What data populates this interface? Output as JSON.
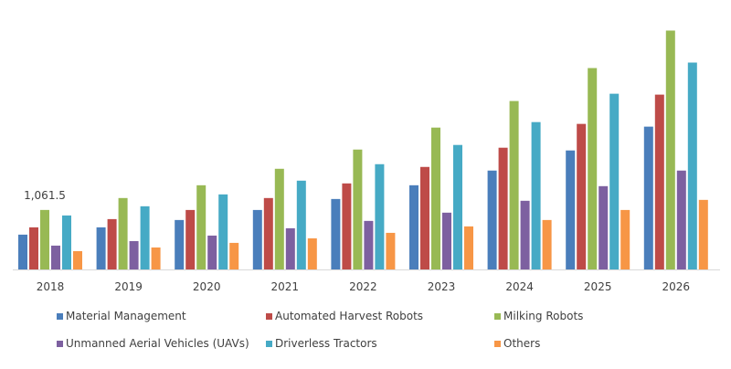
{
  "chart_data": {
    "type": "bar",
    "title": "",
    "xlabel": "",
    "ylabel": "",
    "ylim": [
      0,
      4400
    ],
    "grid": false,
    "legend_placement": "bottom",
    "categories": [
      "2018",
      "2019",
      "2020",
      "2021",
      "2022",
      "2023",
      "2024",
      "2025",
      "2026"
    ],
    "series": [
      {
        "name": "Material Management",
        "color": "#4a7ebb",
        "values": [
          621,
          751,
          882,
          1061,
          1257,
          1502,
          1764,
          2123,
          2548
        ]
      },
      {
        "name": "Automated Harvest Robots",
        "color": "#be4b48",
        "values": [
          751,
          898,
          1061,
          1274,
          1535,
          1829,
          2172,
          2597,
          3119
        ]
      },
      {
        "name": "Milking Robots",
        "color": "#98b954",
        "values": [
          1061.5,
          1274,
          1502,
          1796,
          2139,
          2531,
          3005,
          3593,
          4262
        ]
      },
      {
        "name": "Unmanned Aerial Vehicles (UAVs)",
        "color": "#7d60a0",
        "values": [
          425,
          506,
          604,
          735,
          866,
          1013,
          1225,
          1486,
          1764
        ]
      },
      {
        "name": "Driverless Tractors",
        "color": "#46aac5",
        "values": [
          963,
          1127,
          1339,
          1584,
          1878,
          2221,
          2629,
          3135,
          3691
        ]
      },
      {
        "name": "Others",
        "color": "#f79646",
        "values": [
          327,
          392,
          474,
          555,
          653,
          768,
          882,
          1061,
          1241
        ]
      }
    ],
    "annotations": [
      {
        "text": "1,061.5",
        "category": "2018",
        "series": "Milking Robots"
      }
    ]
  }
}
